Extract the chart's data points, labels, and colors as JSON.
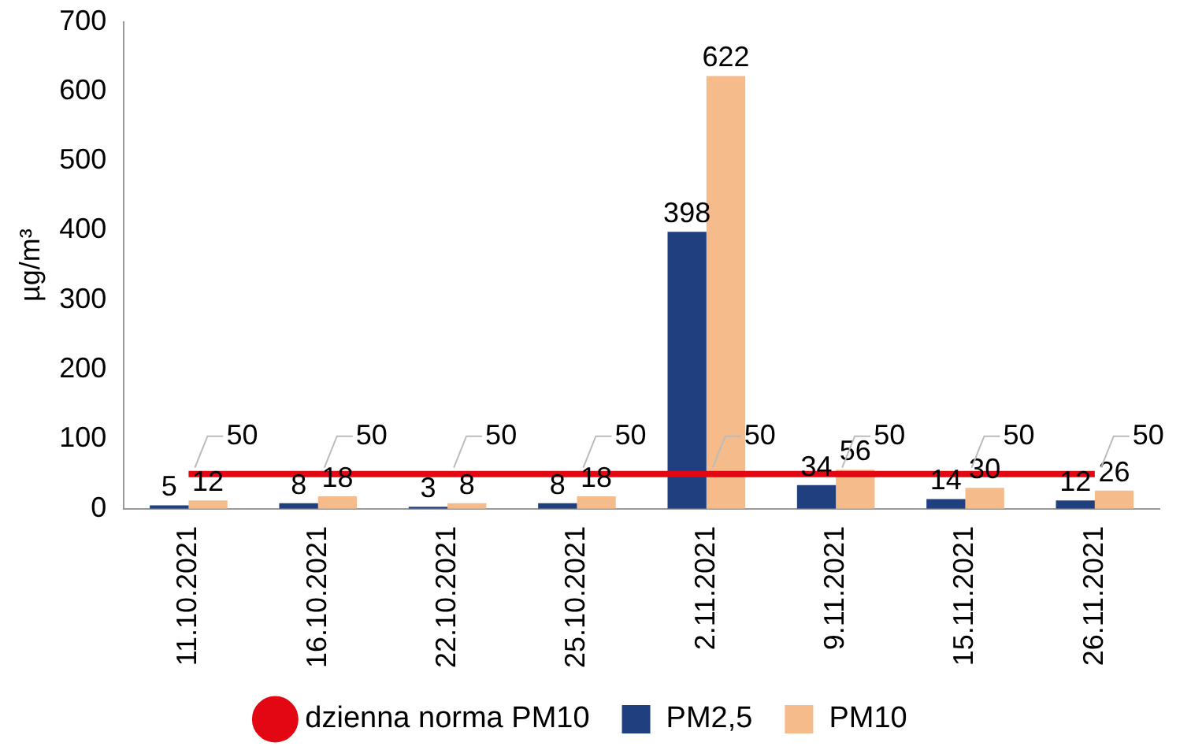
{
  "chart_data": {
    "type": "bar",
    "categories": [
      "11.10.2021",
      "16.10.2021",
      "22.10.2021",
      "25.10.2021",
      "2.11.2021",
      "9.11.2021",
      "15.11.2021",
      "26.11.2021"
    ],
    "ylabel": "µg/m³",
    "ylim": [
      0,
      700
    ],
    "yticks": [
      0,
      100,
      200,
      300,
      400,
      500,
      600,
      700
    ],
    "legend": "bottom",
    "data_labels": true,
    "marker": "none",
    "series": [
      {
        "name": "PM2,5",
        "color": "#1f3f7f",
        "values": [
          5,
          8,
          3,
          8,
          398,
          34,
          14,
          12
        ]
      },
      {
        "name": "PM10",
        "color": "#f5bb8a",
        "values": [
          12,
          18,
          8,
          18,
          622,
          56,
          30,
          26
        ]
      },
      {
        "name": "dzienna norma PM10",
        "type": "line",
        "color": "#e30613",
        "values": [
          50,
          50,
          50,
          50,
          50,
          50,
          50,
          50
        ]
      }
    ]
  }
}
